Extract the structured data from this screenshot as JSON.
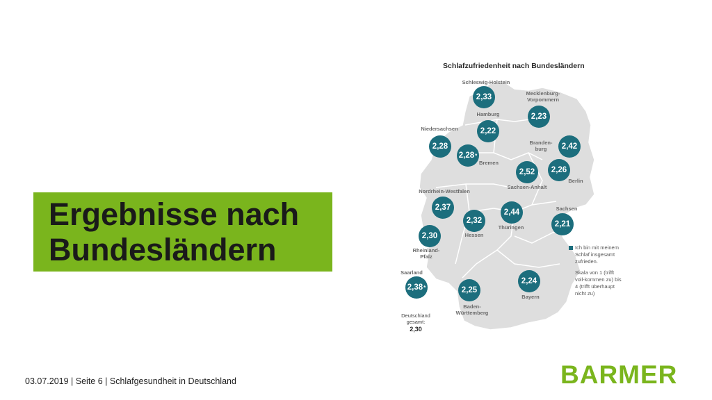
{
  "slide": {
    "title_line1": "Ergebnisse nach",
    "title_line2": "Bundesländern",
    "footer": "03.07.2019 | Seite 6 | Schlafgesundheit in Deutschland",
    "logo": "BARMER"
  },
  "map": {
    "title": "Schlafzufriedenheit nach Bundesländern",
    "states": [
      {
        "name": "Schleswig-Holstein",
        "label": "Schleswig-Holstein",
        "value": "2,33",
        "star": ""
      },
      {
        "name": "Mecklenburg-Vorpommern",
        "label": "Mecklenburg-Vorpommern",
        "value": "2,23",
        "star": ""
      },
      {
        "name": "Hamburg",
        "label": "Hamburg",
        "value": "2,22",
        "star": ""
      },
      {
        "name": "Niedersachsen",
        "label": "Niedersachsen",
        "value": "2,28",
        "star": ""
      },
      {
        "name": "Bremen",
        "label": "Bremen",
        "value": "2,28",
        "star": "*"
      },
      {
        "name": "Brandenburg",
        "label": "Branden-burg",
        "value": "2,42",
        "star": ""
      },
      {
        "name": "Sachsen-Anhalt",
        "label": "Sachsen-Anhalt",
        "value": "2,52",
        "star": ""
      },
      {
        "name": "Berlin",
        "label": "Berlin",
        "value": "2,26",
        "star": ""
      },
      {
        "name": "Nordrhein-Westfalen",
        "label": "Nordrhein-Westfalen",
        "value": "2,37",
        "star": ""
      },
      {
        "name": "Thüringen",
        "label": "Thüringen",
        "value": "2,44",
        "star": ""
      },
      {
        "name": "Hessen",
        "label": "Hessen",
        "value": "2,32",
        "star": ""
      },
      {
        "name": "Sachsen",
        "label": "Sachsen",
        "value": "2,21",
        "star": ""
      },
      {
        "name": "Rheinland-Pfalz",
        "label": "Rheinland-Pfalz",
        "value": "2,30",
        "star": ""
      },
      {
        "name": "Saarland",
        "label": "Saarland",
        "value": "2,38",
        "star": "*"
      },
      {
        "name": "Baden-Württemberg",
        "label": "Baden-Württemberg",
        "value": "2,25",
        "star": ""
      },
      {
        "name": "Bayern",
        "label": "Bayern",
        "value": "2,24",
        "star": ""
      }
    ],
    "legend_text": "Ich bin mit meinem Schlaf insgesamt zufrieden.",
    "legend_scale": "Skala von 1 (trifft voll-kommen zu) bis 4 (trifft überhaupt nicht zu)",
    "total_label": "Deutschland gesamt:",
    "total_value": "2,30",
    "colors": {
      "circle": "#1c6e7d",
      "map": "#dedede",
      "title_box": "#7ab51d",
      "logo": "#7ab51d"
    }
  }
}
